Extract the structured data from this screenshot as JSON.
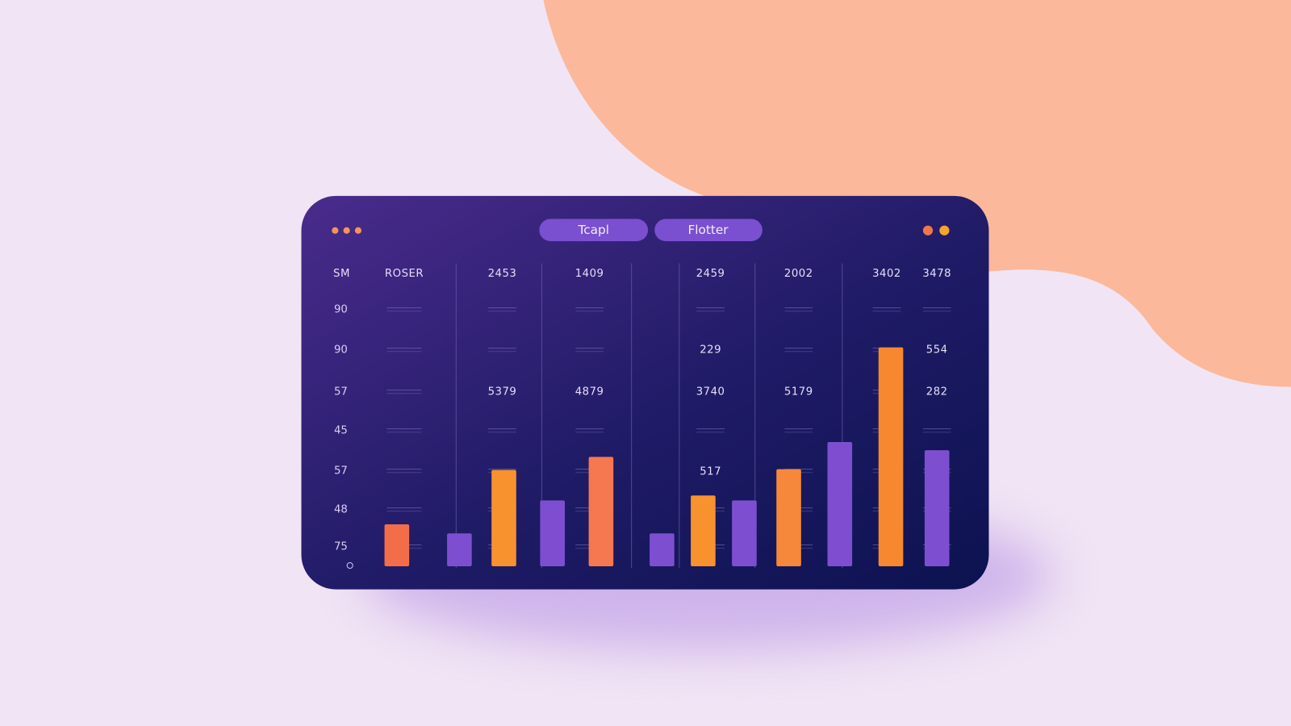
{
  "window": {
    "buttons": [
      "Tcapl",
      "Flotter"
    ]
  },
  "table": {
    "header": [
      "SM",
      "ROSER",
      "2453",
      "1409",
      "2459",
      "2002",
      "3402",
      "3478"
    ],
    "rows": [
      {
        "label": "90",
        "cells": [
          null,
          null,
          null,
          null,
          null,
          null,
          null
        ]
      },
      {
        "label": "90",
        "cells": [
          null,
          null,
          null,
          "229",
          null,
          null,
          "554"
        ]
      },
      {
        "label": "57",
        "cells": [
          null,
          "5379",
          "4879",
          "3740",
          "5179",
          null,
          "282"
        ]
      },
      {
        "label": "45",
        "cells": [
          null,
          null,
          null,
          null,
          null,
          null,
          null
        ]
      },
      {
        "label": "57",
        "cells": [
          null,
          null,
          null,
          "517",
          null,
          null,
          null
        ]
      },
      {
        "label": "48",
        "cells": [
          null,
          null,
          null,
          null,
          null,
          null,
          null
        ]
      },
      {
        "label": "75",
        "cells": [
          null,
          null,
          null,
          null,
          null,
          null,
          null
        ]
      }
    ]
  },
  "bars": [
    {
      "value": 51,
      "color": "#f36e48"
    },
    {
      "value": 40,
      "color": "#7d4fd0"
    },
    {
      "value": 117,
      "color": "#f7922e"
    },
    {
      "value": 80,
      "color": "#7d4fd0"
    },
    {
      "value": 133,
      "color": "#f57850"
    },
    {
      "value": 40,
      "color": "#7d4fd0"
    },
    {
      "value": 86,
      "color": "#f7922e"
    },
    {
      "value": 80,
      "color": "#7d4fd0"
    },
    {
      "value": 118,
      "color": "#f5883a"
    },
    {
      "value": 151,
      "color": "#7d4fd0"
    },
    {
      "value": 266,
      "color": "#f7882f"
    },
    {
      "value": 141,
      "color": "#7d4fd0"
    }
  ]
}
